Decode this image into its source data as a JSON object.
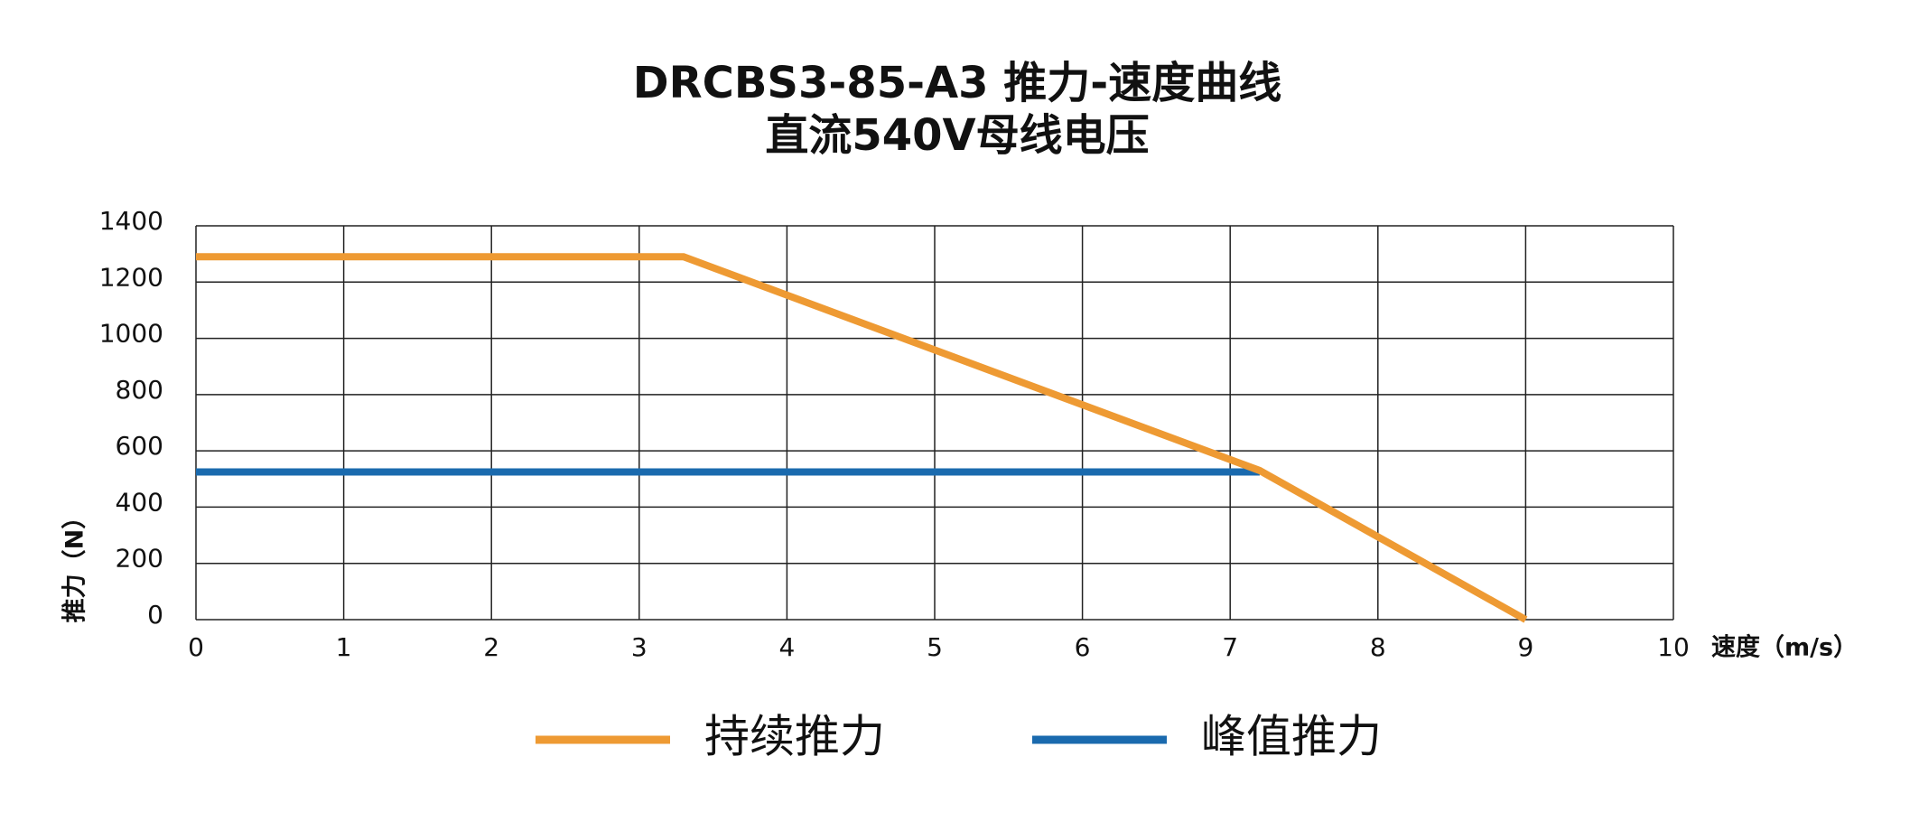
{
  "chart_data": {
    "type": "line",
    "title": "DRCBS3-85-A3 推力-速度曲线",
    "subtitle": "直流540V母线电压",
    "x_label": "速度（m/s）",
    "y_label": "推力（N）",
    "xlim": [
      0,
      10
    ],
    "xticks": [
      0,
      1,
      2,
      3,
      4,
      5,
      6,
      7,
      8,
      9,
      10
    ],
    "ylim": [
      0,
      1400
    ],
    "yticks": [
      0,
      200,
      400,
      600,
      800,
      1000,
      1200,
      1400
    ],
    "grid": true,
    "series": [
      {
        "name": "持续推力",
        "color": "#ee9a33",
        "x": [
          0,
          3.3,
          7.2,
          9
        ],
        "values": [
          1290,
          1290,
          530,
          0
        ]
      },
      {
        "name": "峰值推力",
        "color": "#1a6aae",
        "x": [
          0,
          7.2
        ],
        "values": [
          525,
          525
        ]
      }
    ]
  }
}
